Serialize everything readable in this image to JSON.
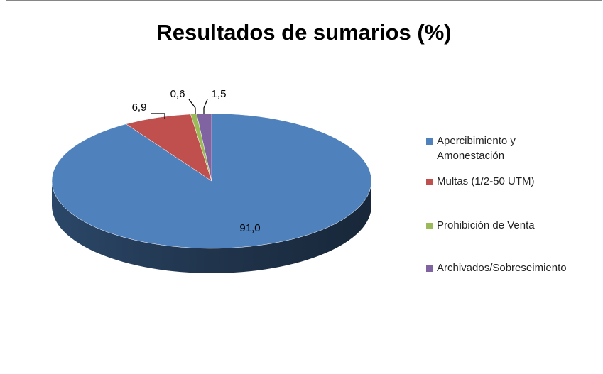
{
  "chart_data": {
    "type": "pie3d",
    "title": "Resultados de sumarios  (%)",
    "categories": [
      "Apercibimiento y Amonestación",
      "Multas (1/2-50 UTM)",
      "Prohibición de Venta",
      "Archivados/Sobreseimiento"
    ],
    "values": [
      91.0,
      6.9,
      0.6,
      1.5
    ],
    "value_labels": [
      "91,0",
      "6,9",
      "0,6",
      "1,5"
    ],
    "colors": [
      "#4f81bd",
      "#c0504d",
      "#9bbb59",
      "#8064a2"
    ],
    "legend": "right"
  }
}
